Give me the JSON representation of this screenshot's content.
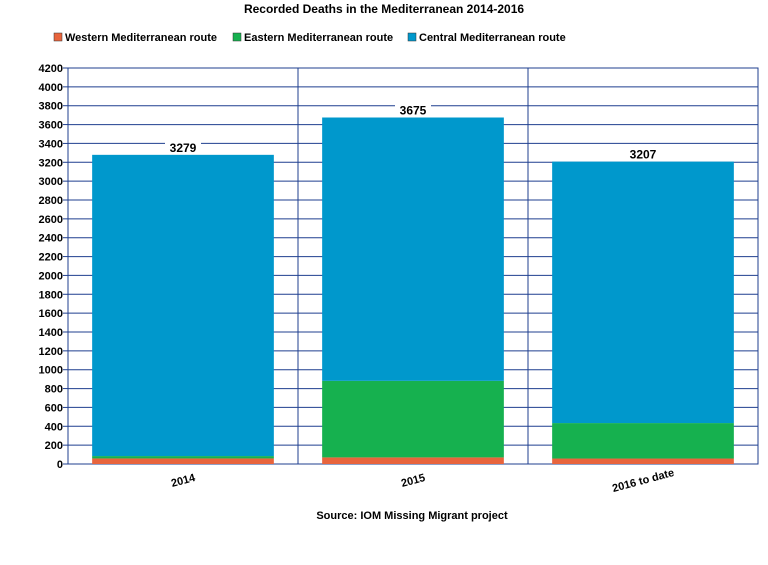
{
  "chart_data": {
    "type": "bar",
    "stacked": true,
    "title": "Recorded Deaths in the Mediterranean 2014-2016",
    "categories": [
      "2014",
      "2015",
      "2016 to date"
    ],
    "series": [
      {
        "name": "Western Mediterranean route",
        "color": "#e8643c",
        "values": [
          59,
          70,
          58
        ]
      },
      {
        "name": "Eastern Mediterranean route",
        "color": "#16b14f",
        "values": [
          25,
          812,
          376
        ]
      },
      {
        "name": "Central Mediterranean route",
        "color": "#0098cc",
        "values": [
          3195,
          2793,
          2773
        ]
      }
    ],
    "totals": [
      3279,
      3675,
      3207
    ],
    "ylim": [
      0,
      4200
    ],
    "ytick_step": 200,
    "grid": true,
    "legend_position": "top",
    "source": "Source: IOM Missing Migrant project"
  }
}
